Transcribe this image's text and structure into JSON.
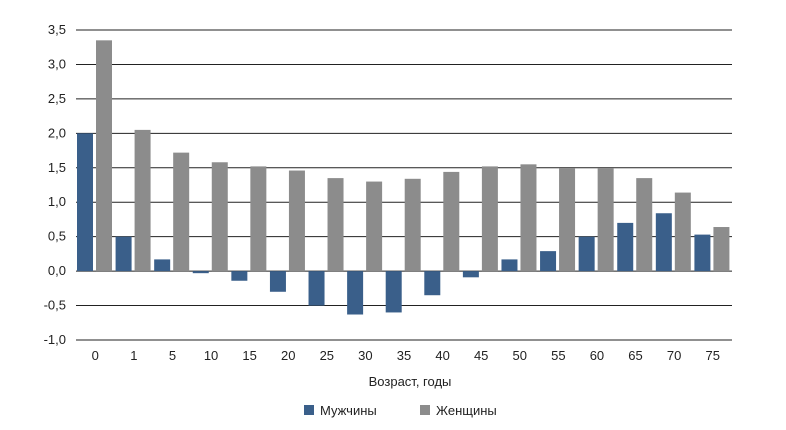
{
  "chart_data": {
    "type": "bar",
    "title": "",
    "xlabel": "Возраст, годы",
    "ylabel": "",
    "ylim": [
      -1.0,
      3.5
    ],
    "yticks": [
      -1.0,
      -0.5,
      0.0,
      0.5,
      1.0,
      1.5,
      2.0,
      2.5,
      3.0,
      3.5
    ],
    "ytick_labels": [
      "-1,0",
      "-0,5",
      "0,0",
      "0,5",
      "1,0",
      "1,5",
      "2,0",
      "2,5",
      "3,0",
      "3,5"
    ],
    "grid": true,
    "legend_position": "bottom-center",
    "categories": [
      "0",
      "1",
      "5",
      "10",
      "15",
      "20",
      "25",
      "30",
      "35",
      "40",
      "45",
      "50",
      "55",
      "60",
      "65",
      "70",
      "75"
    ],
    "series": [
      {
        "name": "Мужчины",
        "color": "#3a5f8a",
        "values": [
          2.0,
          0.5,
          0.17,
          -0.03,
          -0.14,
          -0.3,
          -0.5,
          -0.63,
          -0.6,
          -0.35,
          -0.09,
          0.17,
          0.29,
          0.5,
          0.7,
          0.84,
          0.53
        ]
      },
      {
        "name": "Женщины",
        "color": "#8c8c8c",
        "values": [
          3.35,
          2.05,
          1.72,
          1.58,
          1.52,
          1.46,
          1.35,
          1.3,
          1.34,
          1.44,
          1.52,
          1.55,
          1.49,
          1.49,
          1.35,
          1.14,
          0.64
        ]
      }
    ]
  }
}
